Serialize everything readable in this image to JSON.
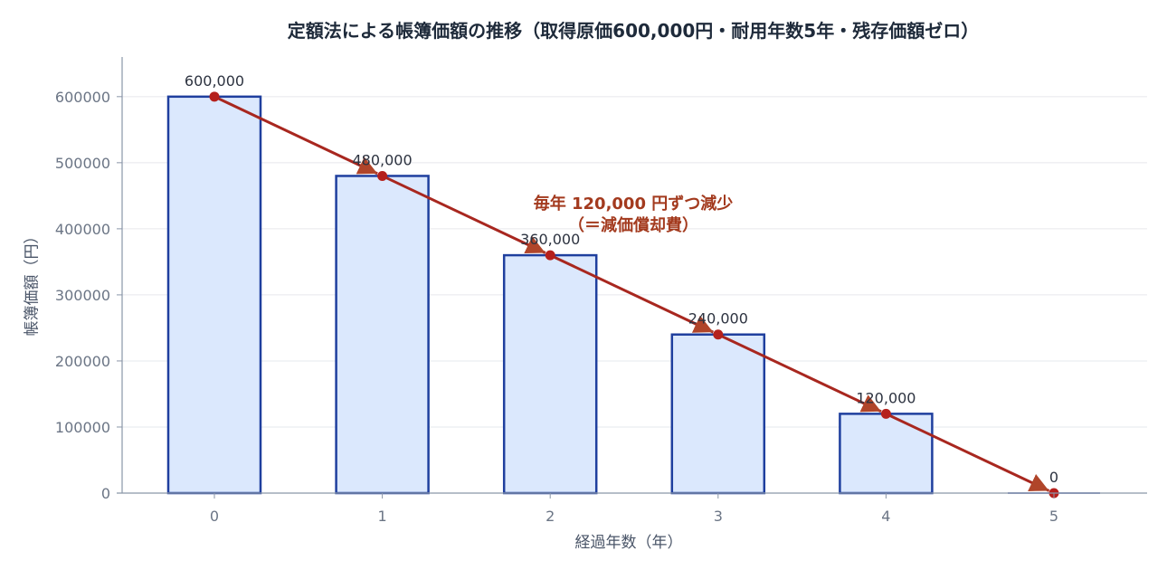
{
  "chart_data": {
    "type": "bar",
    "title": "定額法による帳簿価額の推移（取得原価600,000円・耐用年数5年・残存価額ゼロ）",
    "xlabel": "経過年数（年）",
    "ylabel": "帳簿価額（円）",
    "categories": [
      "0",
      "1",
      "2",
      "3",
      "4",
      "5"
    ],
    "values": [
      600000,
      480000,
      360000,
      240000,
      120000,
      0
    ],
    "data_labels": [
      "600,000",
      "480,000",
      "360,000",
      "240,000",
      "120,000",
      "0"
    ],
    "yticks": [
      "0",
      "100000",
      "200000",
      "300000",
      "400000",
      "500000",
      "600000"
    ],
    "ylim": [
      0,
      660000
    ],
    "grid": true,
    "annotation": [
      "毎年 120,000 円ずつ減少",
      "（＝減価償却費）"
    ],
    "colors": {
      "bar_fill": "#dbe8fd",
      "bar_stroke": "#1f3f9e",
      "line": "#a8271f",
      "marker": "#b5201c",
      "annotation": "#a33a1e"
    }
  }
}
